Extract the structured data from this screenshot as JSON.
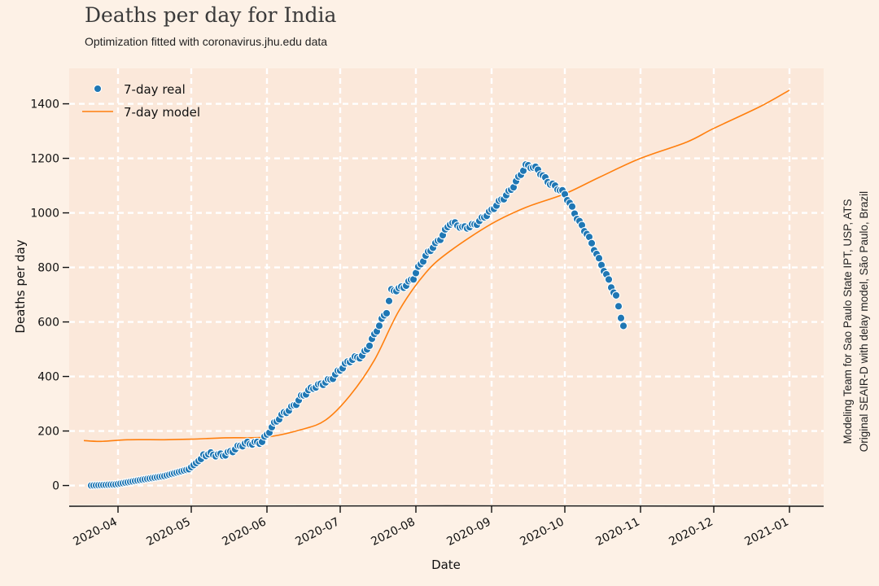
{
  "chart_data": {
    "type": "line",
    "title": "Deaths per day for India",
    "subtitle": "Optimization fitted with coronavirus.jhu.edu data",
    "xlabel": "Date",
    "ylabel": "Deaths per day",
    "xlim": [
      "2020-03-12",
      "2021-01-15"
    ],
    "ylim": [
      -70,
      1530
    ],
    "x_ticks": [
      "2020-04-01",
      "2020-05-01",
      "2020-06-01",
      "2020-07-01",
      "2020-08-01",
      "2020-09-01",
      "2020-10-01",
      "2020-11-01",
      "2020-12-01",
      "2021-01-01"
    ],
    "x_tick_labels": [
      "2020-04",
      "2020-05",
      "2020-06",
      "2020-07",
      "2020-08",
      "2020-09",
      "2020-10",
      "2020-11",
      "2020-12",
      "2021-01"
    ],
    "y_ticks": [
      0,
      200,
      400,
      600,
      800,
      1000,
      1200,
      1400
    ],
    "y_tick_labels": [
      "0",
      "200",
      "400",
      "600",
      "800",
      "1000",
      "1200",
      "1400"
    ],
    "grid": true,
    "legend_position": "top-left",
    "side_annotation": [
      "Modeling Team for Sao Paulo State IPT, USP, ATS",
      "Original SEAIR-D with delay model, São Paulo, Brazil"
    ],
    "colors": {
      "real": "#1f77b4",
      "model": "#ff7f0e",
      "plot_bg": "#fbe8da",
      "page_bg": "#fdf1e6",
      "grid": "#ffffff"
    },
    "series": [
      {
        "name": "7-day real",
        "style": "markers",
        "start_date": "2020-03-21",
        "end_date": "2020-10-25",
        "keypoints": [
          [
            "2020-03-21",
            0
          ],
          [
            "2020-03-31",
            4
          ],
          [
            "2020-04-10",
            20
          ],
          [
            "2020-04-20",
            35
          ],
          [
            "2020-04-30",
            60
          ],
          [
            "2020-05-06",
            105
          ],
          [
            "2020-05-10",
            110
          ],
          [
            "2020-05-20",
            135
          ],
          [
            "2020-05-30",
            170
          ],
          [
            "2020-06-05",
            230
          ],
          [
            "2020-06-15",
            330
          ],
          [
            "2020-06-22",
            360
          ],
          [
            "2020-06-30",
            420
          ],
          [
            "2020-07-10",
            480
          ],
          [
            "2020-07-20",
            630
          ],
          [
            "2020-07-22",
            710
          ],
          [
            "2020-07-31",
            760
          ],
          [
            "2020-08-08",
            880
          ],
          [
            "2020-08-15",
            960
          ],
          [
            "2020-08-20",
            940
          ],
          [
            "2020-09-01",
            1000
          ],
          [
            "2020-09-15",
            1165
          ],
          [
            "2020-09-20",
            1160
          ],
          [
            "2020-10-01",
            1060
          ],
          [
            "2020-10-10",
            930
          ],
          [
            "2020-10-15",
            820
          ],
          [
            "2020-10-22",
            700
          ],
          [
            "2020-10-25",
            590
          ]
        ]
      },
      {
        "name": "7-day model",
        "style": "line",
        "points": [
          [
            "2020-03-18",
            165
          ],
          [
            "2020-03-25",
            162
          ],
          [
            "2020-04-05",
            168
          ],
          [
            "2020-04-20",
            168
          ],
          [
            "2020-05-01",
            170
          ],
          [
            "2020-05-15",
            175
          ],
          [
            "2020-06-01",
            178
          ],
          [
            "2020-06-15",
            205
          ],
          [
            "2020-06-25",
            240
          ],
          [
            "2020-07-05",
            330
          ],
          [
            "2020-07-15",
            460
          ],
          [
            "2020-07-25",
            640
          ],
          [
            "2020-08-05",
            780
          ],
          [
            "2020-08-15",
            860
          ],
          [
            "2020-09-01",
            960
          ],
          [
            "2020-09-15",
            1020
          ],
          [
            "2020-10-01",
            1070
          ],
          [
            "2020-10-15",
            1130
          ],
          [
            "2020-11-01",
            1200
          ],
          [
            "2020-11-20",
            1260
          ],
          [
            "2020-12-01",
            1310
          ],
          [
            "2020-12-20",
            1390
          ],
          [
            "2021-01-01",
            1450
          ]
        ]
      }
    ]
  }
}
